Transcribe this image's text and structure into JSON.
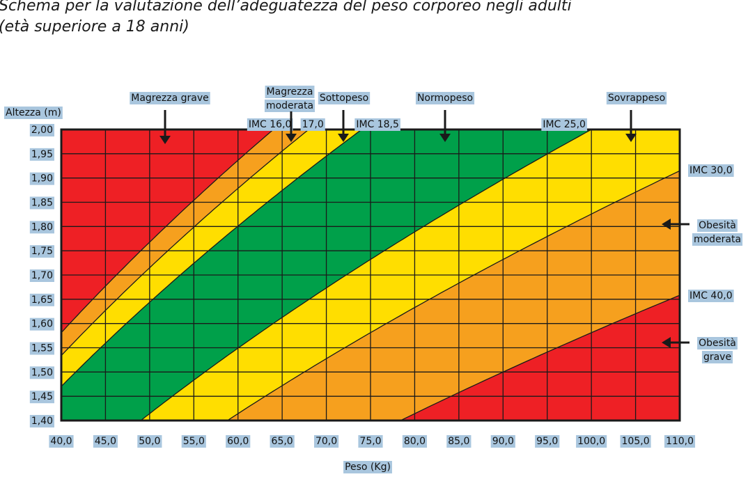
{
  "title_line1": "Schema per la valutazione dell’adeguatezza del peso corporeo negli adulti",
  "title_line2": "(età superiore a 18 anni)",
  "chart_data": {
    "type": "area",
    "xlabel": "Peso (Kg)",
    "ylabel": "Altezza (m)",
    "xlim": [
      40,
      110
    ],
    "ylim": [
      1.4,
      2.0
    ],
    "x_ticks": [
      "40,0",
      "45,0",
      "50,0",
      "55,0",
      "60,0",
      "65,0",
      "70,0",
      "75,0",
      "80,0",
      "85,0",
      "90,0",
      "95,0",
      "100,0",
      "105,0",
      "110,0"
    ],
    "y_ticks": [
      "2,00",
      "1,95",
      "1,90",
      "1,85",
      "1,80",
      "1,75",
      "1,70",
      "1,65",
      "1,60",
      "1,55",
      "1,50",
      "1,45",
      "1,40"
    ],
    "grid": true,
    "bmi_thresholds": [
      {
        "label": "IMC 16,0",
        "value": 16.0
      },
      {
        "label": "17,0",
        "value": 17.0
      },
      {
        "label": "IMC 18,5",
        "value": 18.5
      },
      {
        "label": "IMC 25,0",
        "value": 25.0
      },
      {
        "label": "IMC 30,0",
        "value": 30.0
      },
      {
        "label": "IMC 40,0",
        "value": 40.0
      }
    ],
    "zones": [
      {
        "name": "Magrezza grave",
        "bmi_max": 16.0,
        "color": "#ee2025"
      },
      {
        "name": "Magrezza moderata",
        "bmi_min": 16.0,
        "bmi_max": 17.0,
        "color": "#f6a01e"
      },
      {
        "name": "Sottopeso",
        "bmi_min": 17.0,
        "bmi_max": 18.5,
        "color": "#ffde00"
      },
      {
        "name": "Normopeso",
        "bmi_min": 18.5,
        "bmi_max": 25.0,
        "color": "#00a04a"
      },
      {
        "name": "Sovrappeso",
        "bmi_min": 25.0,
        "bmi_max": 30.0,
        "color": "#ffde00"
      },
      {
        "name": "Obesità moderata",
        "bmi_min": 30.0,
        "bmi_max": 40.0,
        "color": "#f6a01e"
      },
      {
        "name": "Obesità grave",
        "bmi_min": 40.0,
        "color": "#ee2025"
      }
    ],
    "category_labels": [
      {
        "text": [
          "Magrezza grave"
        ]
      },
      {
        "text": [
          "Magrezza",
          "moderata"
        ]
      },
      {
        "text": [
          "Sottopeso"
        ]
      },
      {
        "text": [
          "Normopeso"
        ]
      },
      {
        "text": [
          "Sovrappeso"
        ]
      },
      {
        "text": [
          "Obesità",
          "moderata"
        ]
      },
      {
        "text": [
          "Obesità",
          "grave"
        ]
      }
    ]
  }
}
